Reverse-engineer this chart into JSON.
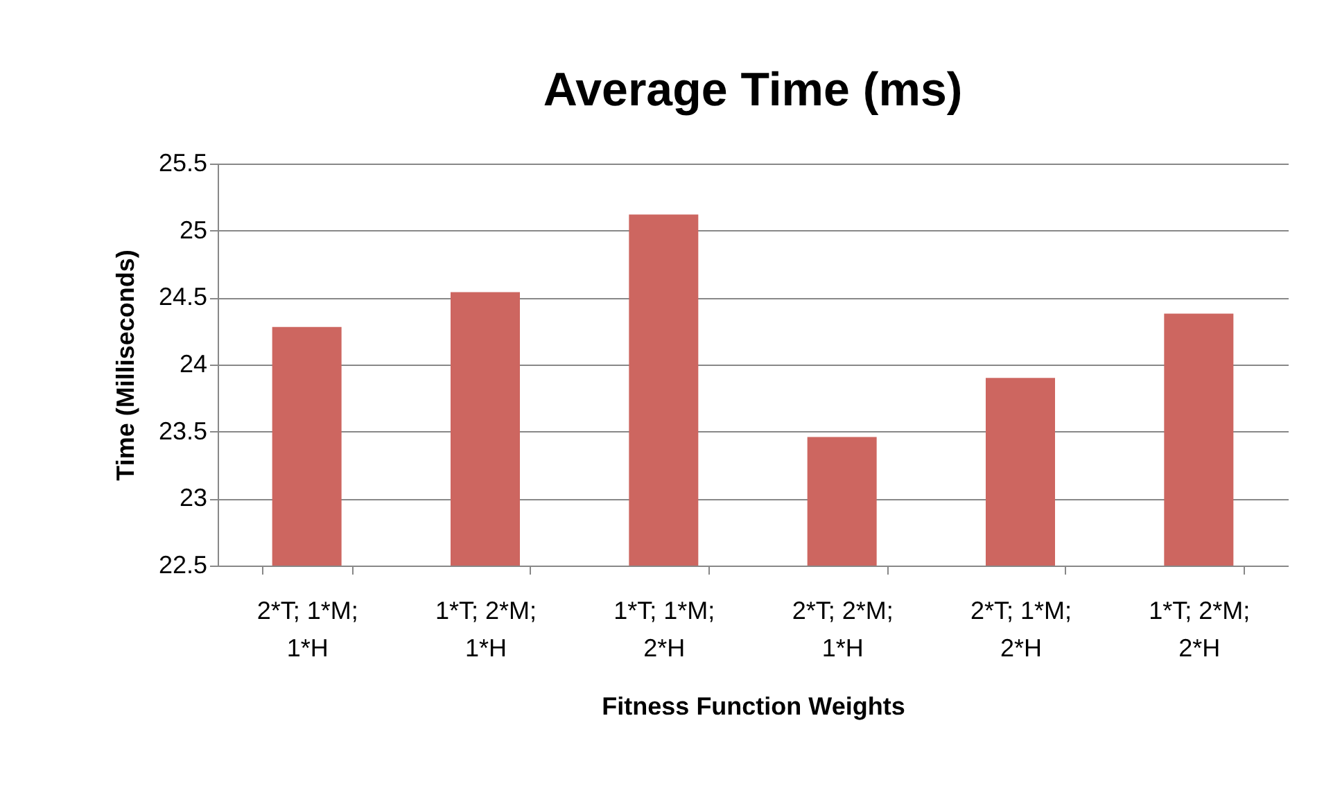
{
  "chart_data": {
    "type": "bar",
    "title": "Average Time (ms)",
    "xlabel": "Fitness Function Weights",
    "ylabel": "Time (Milliseconds)",
    "categories": [
      "2*T; 1*M; 1*H",
      "1*T; 2*M; 1*H",
      "1*T; 1*M; 2*H",
      "2*T; 2*M; 1*H",
      "2*T; 1*M; 2*H",
      "1*T; 2*M; 2*H"
    ],
    "values": [
      24.28,
      24.54,
      25.12,
      23.46,
      23.9,
      24.38
    ],
    "color": "#cd6660",
    "ylim": [
      22.5,
      25.5
    ],
    "yticks": [
      22.5,
      23,
      23.5,
      24,
      24.5,
      25,
      25.5
    ],
    "grid": "y"
  }
}
